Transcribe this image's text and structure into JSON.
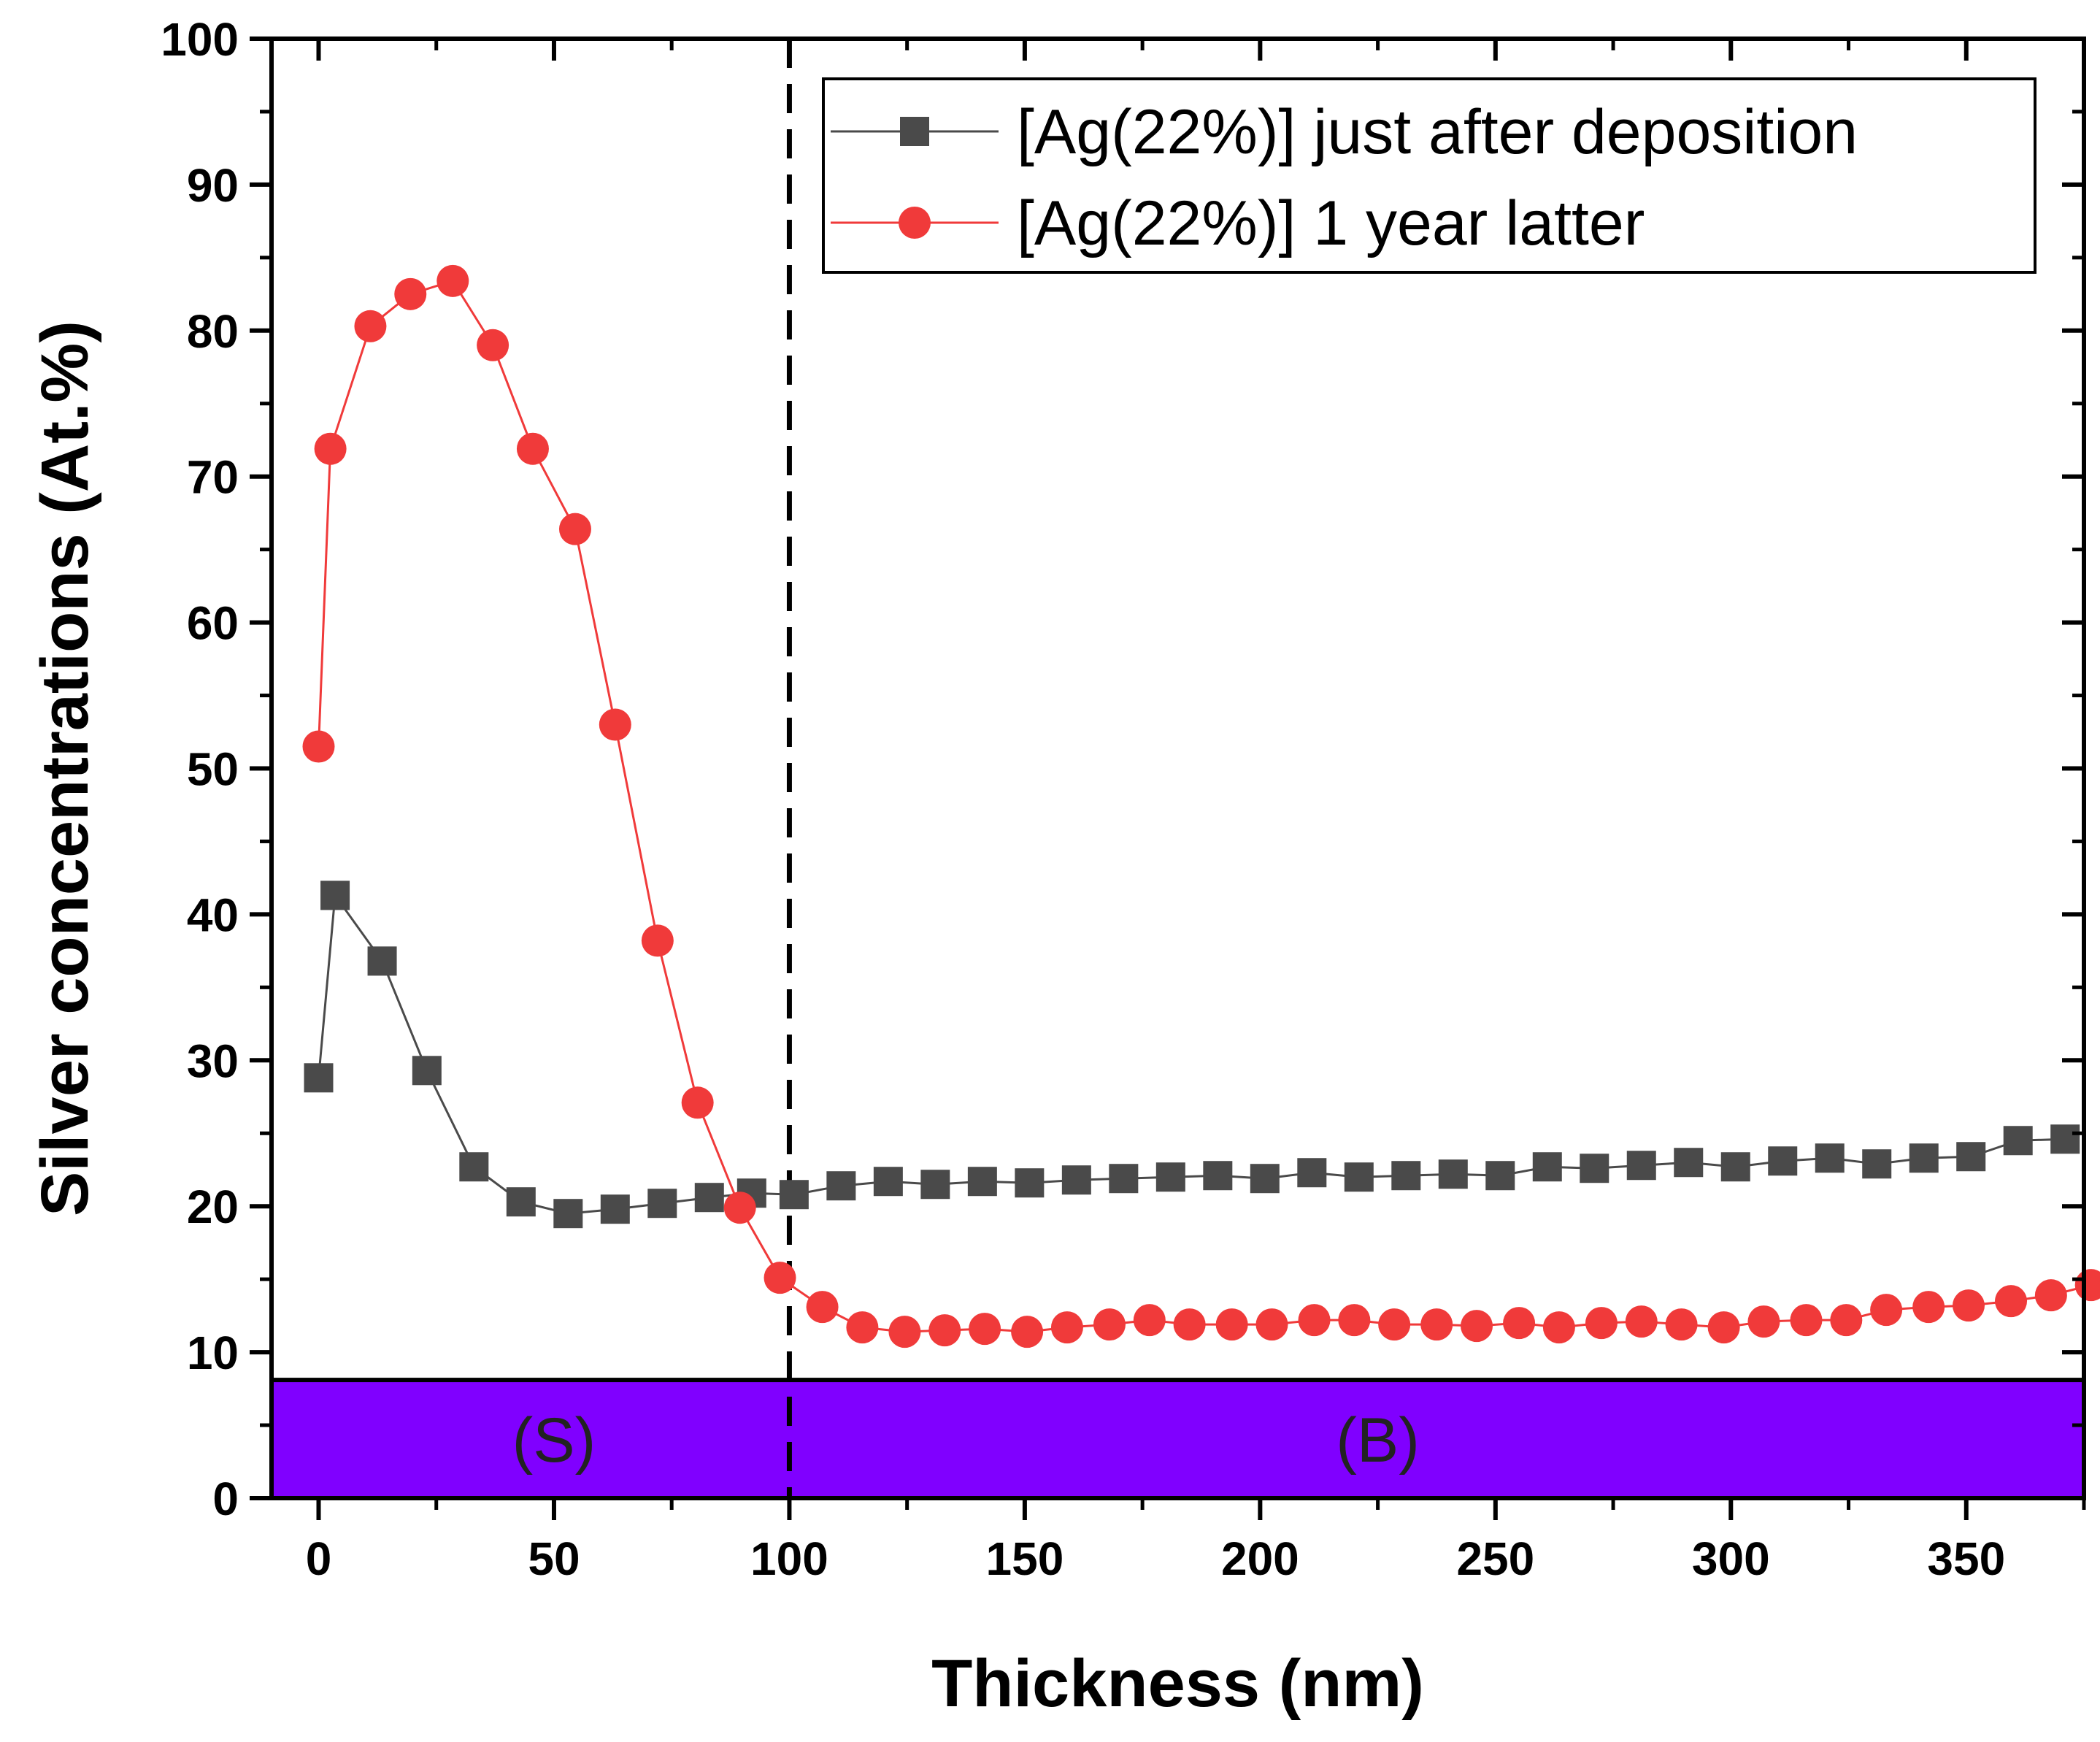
{
  "chart_data": {
    "type": "line",
    "xlabel": "Thickness (nm)",
    "ylabel": "Silver concentrations (At.%)",
    "xlim": [
      -10,
      375
    ],
    "ylim": [
      0,
      100
    ],
    "x_ticks": [
      0,
      50,
      100,
      150,
      200,
      250,
      300,
      350
    ],
    "y_ticks": [
      0,
      10,
      20,
      30,
      40,
      50,
      60,
      70,
      80,
      90,
      100
    ],
    "grid": false,
    "legend_position": "top-right",
    "series": [
      {
        "name": "[Ag(22%)] just after deposition",
        "color": "#4a4a4a",
        "marker": "square",
        "x": [
          0,
          3.5,
          13.5,
          23,
          33,
          43,
          53,
          63,
          73,
          83,
          92,
          101,
          111,
          121,
          131,
          141,
          151,
          161,
          171,
          181,
          191,
          201,
          211,
          221,
          231,
          241,
          251,
          261,
          271,
          281,
          291,
          301,
          311,
          321,
          331,
          341,
          351,
          361,
          371
        ],
        "y": [
          28.8,
          41.3,
          36.8,
          29.3,
          22.7,
          20.3,
          19.5,
          19.8,
          20.2,
          20.6,
          20.9,
          20.8,
          21.4,
          21.7,
          21.5,
          21.7,
          21.6,
          21.8,
          21.9,
          22.0,
          22.1,
          21.9,
          22.3,
          22.0,
          22.1,
          22.2,
          22.1,
          22.7,
          22.6,
          22.8,
          23.0,
          22.7,
          23.1,
          23.3,
          22.9,
          23.3,
          23.4,
          24.5,
          24.6
        ]
      },
      {
        "name": "[Ag(22%)] 1 year latter",
        "color": "#f03a3a",
        "marker": "circle",
        "x": [
          0,
          2.5,
          11,
          19.5,
          28.5,
          37,
          45.5,
          54.5,
          63,
          72,
          80.5,
          89.5,
          98,
          107,
          115.5,
          124.5,
          133,
          141.5,
          150.5,
          159,
          168,
          176.5,
          185,
          194,
          202.5,
          211.5,
          220,
          228.5,
          237.5,
          246,
          255,
          263.5,
          272.5,
          281,
          289.5,
          298.5,
          307,
          316,
          324.5,
          333,
          342,
          350.5,
          359.5,
          368,
          376.5
        ],
        "y": [
          51.5,
          71.9,
          80.3,
          82.5,
          83.4,
          79.0,
          71.9,
          66.4,
          53.0,
          38.2,
          27.1,
          19.9,
          15.1,
          13.1,
          11.7,
          11.4,
          11.5,
          11.6,
          11.4,
          11.7,
          11.9,
          12.2,
          11.9,
          11.9,
          11.9,
          12.2,
          12.2,
          11.9,
          11.9,
          11.8,
          12.0,
          11.7,
          12.0,
          12.1,
          11.9,
          11.7,
          12.1,
          12.2,
          12.2,
          12.9,
          13.1,
          13.2,
          13.5,
          13.9,
          14.6
        ]
      }
    ],
    "annotations": {
      "boundary_x": 100,
      "band": {
        "y_top": 8.1,
        "color": "#8000ff"
      },
      "region_labels": [
        {
          "text": "(S)",
          "x": 50,
          "y": 4
        },
        {
          "text": "(B)",
          "x": 225,
          "y": 4
        }
      ]
    }
  }
}
